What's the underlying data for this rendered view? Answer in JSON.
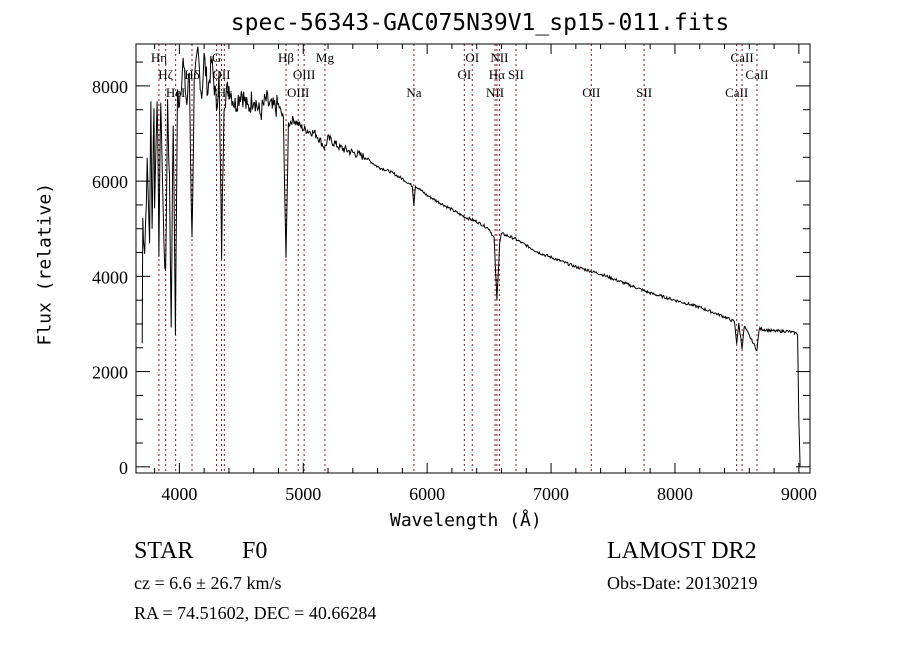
{
  "chart_data": {
    "type": "line",
    "title": "spec-56343-GAC075N39V1_sp15-011.fits",
    "xlabel": "Wavelength (Å)",
    "ylabel": "Flux (relative)",
    "xlim": [
      3650,
      9090
    ],
    "ylim": [
      -130,
      8880
    ],
    "xticks": [
      4000,
      5000,
      6000,
      7000,
      8000,
      9000
    ],
    "yticks": [
      0,
      2000,
      4000,
      6000,
      8000
    ],
    "grid": false,
    "series": [
      {
        "name": "spectrum",
        "points": [
          [
            3700,
            2600
          ],
          [
            3705,
            5200
          ],
          [
            3720,
            4500
          ],
          [
            3740,
            6300
          ],
          [
            3760,
            4800
          ],
          [
            3770,
            7600
          ],
          [
            3780,
            5000
          ],
          [
            3795,
            7700
          ],
          [
            3800,
            5400
          ],
          [
            3820,
            7900
          ],
          [
            3835,
            4600
          ],
          [
            3850,
            7800
          ],
          [
            3870,
            5200
          ],
          [
            3889,
            3900
          ],
          [
            3905,
            7700
          ],
          [
            3920,
            6000
          ],
          [
            3934,
            3000
          ],
          [
            3950,
            7300
          ],
          [
            3968,
            2900
          ],
          [
            3985,
            7800
          ],
          [
            4000,
            7700
          ],
          [
            4030,
            8500
          ],
          [
            4060,
            7600
          ],
          [
            4080,
            8300
          ],
          [
            4102,
            4700
          ],
          [
            4120,
            8000
          ],
          [
            4150,
            8700
          ],
          [
            4180,
            7800
          ],
          [
            4200,
            8600
          ],
          [
            4230,
            7900
          ],
          [
            4260,
            8500
          ],
          [
            4300,
            7600
          ],
          [
            4320,
            8200
          ],
          [
            4341,
            4500
          ],
          [
            4360,
            7700
          ],
          [
            4400,
            8000
          ],
          [
            4450,
            7600
          ],
          [
            4500,
            7900
          ],
          [
            4550,
            7500
          ],
          [
            4600,
            7800
          ],
          [
            4650,
            7400
          ],
          [
            4700,
            7700
          ],
          [
            4750,
            7500
          ],
          [
            4800,
            7600
          ],
          [
            4840,
            7300
          ],
          [
            4861,
            4300
          ],
          [
            4880,
            7200
          ],
          [
            4920,
            7300
          ],
          [
            5000,
            7100
          ],
          [
            5100,
            7000
          ],
          [
            5175,
            6700
          ],
          [
            5200,
            6900
          ],
          [
            5300,
            6700
          ],
          [
            5400,
            6600
          ],
          [
            5500,
            6500
          ],
          [
            5600,
            6300
          ],
          [
            5700,
            6200
          ],
          [
            5800,
            6050
          ],
          [
            5880,
            5900
          ],
          [
            5893,
            5500
          ],
          [
            5905,
            5900
          ],
          [
            6000,
            5700
          ],
          [
            6100,
            5550
          ],
          [
            6200,
            5400
          ],
          [
            6300,
            5250
          ],
          [
            6400,
            5150
          ],
          [
            6500,
            5000
          ],
          [
            6540,
            4800
          ],
          [
            6563,
            3500
          ],
          [
            6585,
            4700
          ],
          [
            6600,
            4900
          ],
          [
            6700,
            4800
          ],
          [
            6800,
            4650
          ],
          [
            6900,
            4500
          ],
          [
            7000,
            4400
          ],
          [
            7200,
            4200
          ],
          [
            7400,
            4050
          ],
          [
            7600,
            3850
          ],
          [
            7800,
            3650
          ],
          [
            8000,
            3500
          ],
          [
            8200,
            3350
          ],
          [
            8400,
            3150
          ],
          [
            8480,
            3050
          ],
          [
            8498,
            2600
          ],
          [
            8515,
            3000
          ],
          [
            8542,
            2500
          ],
          [
            8560,
            2950
          ],
          [
            8662,
            2450
          ],
          [
            8680,
            2900
          ],
          [
            8800,
            2850
          ],
          [
            8900,
            2850
          ],
          [
            8990,
            2800
          ],
          [
            9000,
            1000
          ],
          [
            9010,
            0
          ]
        ]
      }
    ],
    "lines": [
      {
        "label": "Hη",
        "wl": 3835,
        "row": 1
      },
      {
        "label": "Hζ",
        "wl": 3889,
        "row": 2
      },
      {
        "label": "HeI",
        "wl": 3970,
        "row": 3
      },
      {
        "label": "Hδ",
        "wl": 4102,
        "row": 2
      },
      {
        "label": "G",
        "wl": 4300,
        "row": 1
      },
      {
        "label": "OII",
        "wl": 4340,
        "row": 2
      },
      {
        "label": "Hγ",
        "wl": 4363,
        "row": 3
      },
      {
        "label": "Hβ",
        "wl": 4861,
        "row": 1
      },
      {
        "label": "OIII",
        "wl": 4959,
        "row": 3
      },
      {
        "label": "OIII",
        "wl": 5007,
        "row": 2
      },
      {
        "label": "Mg",
        "wl": 5175,
        "row": 1
      },
      {
        "label": "Na",
        "wl": 5893,
        "row": 3
      },
      {
        "label": "OI",
        "wl": 6300,
        "row": 2
      },
      {
        "label": "OI",
        "wl": 6364,
        "row": 1
      },
      {
        "label": "NII",
        "wl": 6548,
        "row": 3
      },
      {
        "label": "Hα",
        "wl": 6563,
        "row": 2
      },
      {
        "label": "NII",
        "wl": 6583,
        "row": 1
      },
      {
        "label": "SII",
        "wl": 6717,
        "row": 2
      },
      {
        "label": "OII",
        "wl": 7325,
        "row": 3
      },
      {
        "label": "SII",
        "wl": 7751,
        "row": 3
      },
      {
        "label": "CaII",
        "wl": 8498,
        "row": 3
      },
      {
        "label": "CaII",
        "wl": 8542,
        "row": 1
      },
      {
        "label": "CaII",
        "wl": 8662,
        "row": 2
      }
    ]
  },
  "info": {
    "object_class": "STAR",
    "subclass": "F0",
    "survey": "LAMOST DR2",
    "cz": "cz = 6.6 ± 26.7 km/s",
    "obs_date": "Obs-Date: 20130219",
    "coords": "RA =  74.51602, DEC =  40.66284"
  }
}
